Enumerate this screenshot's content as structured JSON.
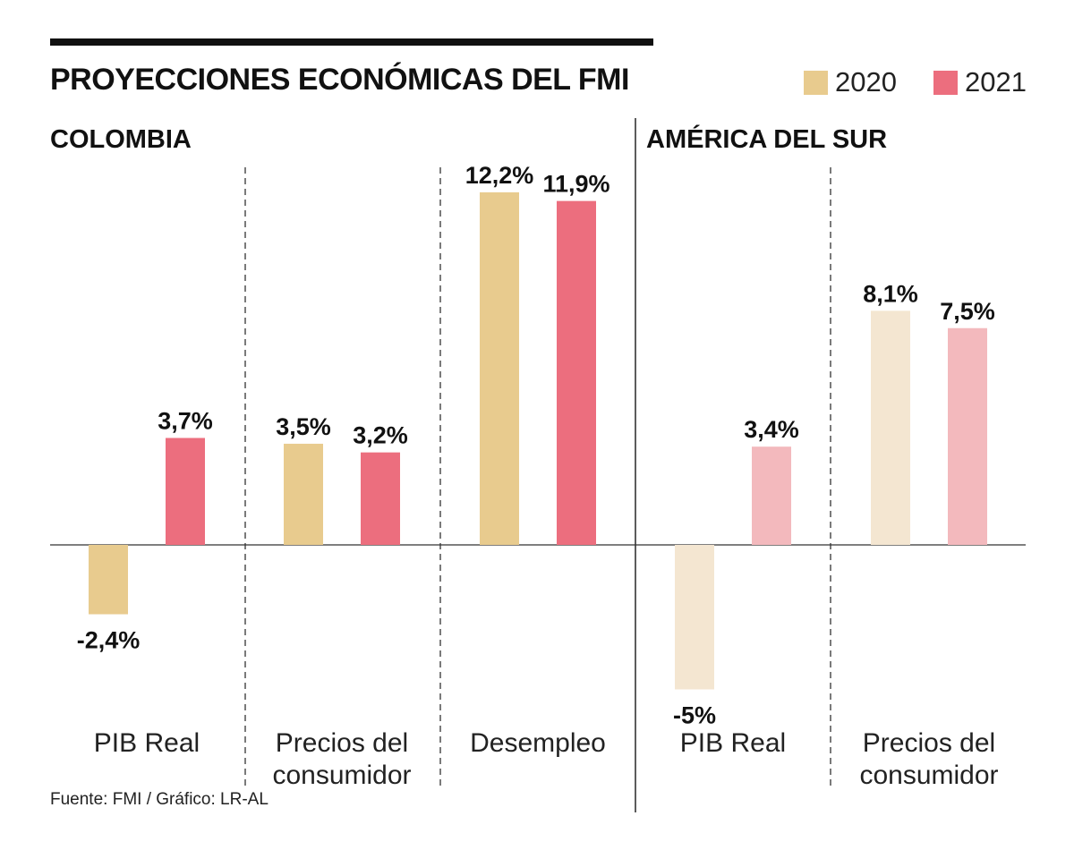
{
  "chart_data": {
    "type": "bar",
    "title": "PROYECCIONES ECONÓMICAS DEL FMI",
    "legend": [
      {
        "name": "2020",
        "color": "#e8cb8e"
      },
      {
        "name": "2021",
        "color": "#ec6e7e"
      }
    ],
    "regions": [
      {
        "name": "COLOMBIA"
      },
      {
        "name": "AMÉRICA DEL SUR"
      }
    ],
    "groups": [
      {
        "region": "COLOMBIA",
        "category": [
          "PIB Real"
        ],
        "values": [
          -2.4,
          3.7
        ],
        "labels": [
          "-2,4%",
          "3,7%"
        ],
        "colors": [
          "#e8cb8e",
          "#ec6e7e"
        ]
      },
      {
        "region": "COLOMBIA",
        "category": [
          "Precios del",
          "consumidor"
        ],
        "values": [
          3.5,
          3.2
        ],
        "labels": [
          "3,5%",
          "3,2%"
        ],
        "colors": [
          "#e8cb8e",
          "#ec6e7e"
        ]
      },
      {
        "region": "COLOMBIA",
        "category": [
          "Desempleo"
        ],
        "values": [
          12.2,
          11.9
        ],
        "labels": [
          "12,2%",
          "11,9%"
        ],
        "colors": [
          "#e8cb8e",
          "#ec6e7e"
        ]
      },
      {
        "region": "AMÉRICA DEL SUR",
        "category": [
          "PIB Real"
        ],
        "values": [
          -5,
          3.4
        ],
        "labels": [
          "-5%",
          "3,4%"
        ],
        "colors": [
          "#f4e6d1",
          "#f3b9bd"
        ]
      },
      {
        "region": "AMÉRICA DEL SUR",
        "category": [
          "Precios del",
          "consumidor"
        ],
        "values": [
          8.1,
          7.5
        ],
        "labels": [
          "8,1%",
          "7,5%"
        ],
        "colors": [
          "#f4e6d1",
          "#f3b9bd"
        ]
      }
    ],
    "source": "Fuente: FMI / Gráfico: LR-AL"
  }
}
